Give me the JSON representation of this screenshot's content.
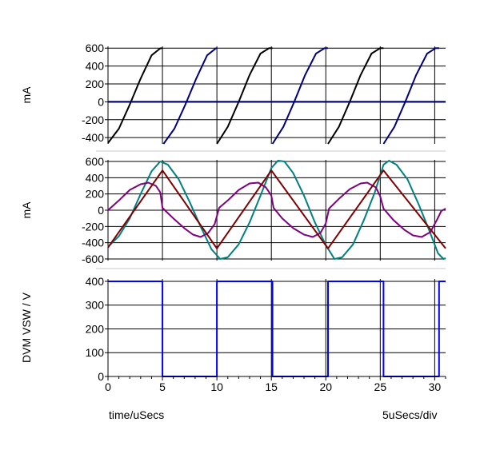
{
  "chart_data": [
    {
      "type": "line",
      "ylabel": "mA",
      "ylim": [
        -470,
        620
      ],
      "yticks": [
        600,
        400,
        200,
        0,
        -200,
        -400
      ],
      "ytick_labels": [
        "600",
        "400",
        "200",
        "0",
        "-200",
        "-400"
      ],
      "xlim": [
        0,
        31
      ],
      "grid": true,
      "series": [
        {
          "color": "#000000",
          "segments": [
            [
              [
                0,
                -460
              ],
              [
                1,
                -300
              ],
              [
                2,
                -30
              ],
              [
                3,
                260
              ],
              [
                4,
                520
              ],
              [
                4.8,
                598
              ],
              [
                5,
                600
              ]
            ],
            [
              [
                10,
                -470
              ],
              [
                11,
                -280
              ],
              [
                12,
                0
              ],
              [
                13,
                300
              ],
              [
                14,
                540
              ],
              [
                14.8,
                600
              ],
              [
                15.1,
                600
              ]
            ],
            [
              [
                20.2,
                -470
              ],
              [
                21.2,
                -280
              ],
              [
                22.2,
                0
              ],
              [
                23.2,
                300
              ],
              [
                24.2,
                540
              ],
              [
                25,
                600
              ],
              [
                25.3,
                600
              ]
            ],
            [
              [
                0,
                0
              ],
              [
                31,
                0
              ]
            ]
          ]
        },
        {
          "color": "#00007f",
          "segments": [
            [
              [
                5.1,
                -470
              ],
              [
                6.1,
                -300
              ],
              [
                7.1,
                -30
              ],
              [
                8.1,
                260
              ],
              [
                9.1,
                520
              ],
              [
                9.9,
                598
              ],
              [
                10,
                600
              ]
            ],
            [
              [
                15.1,
                -470
              ],
              [
                16.1,
                -280
              ],
              [
                17.1,
                0
              ],
              [
                18.1,
                300
              ],
              [
                19.1,
                540
              ],
              [
                19.9,
                600
              ],
              [
                20.2,
                600
              ]
            ],
            [
              [
                25.3,
                -470
              ],
              [
                26.3,
                -280
              ],
              [
                27.3,
                0
              ],
              [
                28.3,
                300
              ],
              [
                29.3,
                540
              ],
              [
                30.1,
                600
              ],
              [
                30.4,
                600
              ]
            ],
            [
              [
                0,
                0
              ],
              [
                31,
                0
              ]
            ]
          ]
        }
      ]
    },
    {
      "type": "line",
      "ylabel": "mA",
      "ylim": [
        -620,
        620
      ],
      "yticks": [
        600,
        400,
        200,
        0,
        -200,
        -400,
        -600
      ],
      "ytick_labels": [
        "600",
        "400",
        "200",
        "0",
        "-200",
        "-400",
        "-600"
      ],
      "xlim": [
        0,
        31
      ],
      "grid": true,
      "series": [
        {
          "color": "#008080",
          "points": [
            [
              0,
              -450
            ],
            [
              1,
              -320
            ],
            [
              2,
              -100
            ],
            [
              3,
              200
            ],
            [
              4,
              480
            ],
            [
              4.8,
              600
            ],
            [
              5.5,
              560
            ],
            [
              6.5,
              380
            ],
            [
              7.5,
              100
            ],
            [
              8.5,
              -200
            ],
            [
              9.5,
              -480
            ],
            [
              10.3,
              -600
            ],
            [
              11,
              -580
            ],
            [
              12,
              -420
            ],
            [
              13,
              -150
            ],
            [
              14,
              180
            ],
            [
              15,
              520
            ],
            [
              15.6,
              610
            ],
            [
              16.2,
              600
            ],
            [
              17,
              460
            ],
            [
              18,
              180
            ],
            [
              19,
              -150
            ],
            [
              20,
              -430
            ],
            [
              20.8,
              -600
            ],
            [
              21.5,
              -580
            ],
            [
              22.5,
              -420
            ],
            [
              23.5,
              -120
            ],
            [
              24.5,
              220
            ],
            [
              25.3,
              560
            ],
            [
              25.8,
              610
            ],
            [
              26.5,
              560
            ],
            [
              27.5,
              380
            ],
            [
              28.5,
              80
            ],
            [
              29.5,
              -250
            ],
            [
              30.3,
              -530
            ],
            [
              30.8,
              -600
            ],
            [
              31,
              -590
            ]
          ]
        },
        {
          "color": "#7f007f",
          "points": [
            [
              0,
              0
            ],
            [
              1,
              120
            ],
            [
              2,
              250
            ],
            [
              3,
              320
            ],
            [
              3.7,
              340
            ],
            [
              4.4,
              300
            ],
            [
              4.8,
              220
            ],
            [
              5,
              30
            ],
            [
              5.3,
              -10
            ],
            [
              6,
              -100
            ],
            [
              7,
              -220
            ],
            [
              7.8,
              -300
            ],
            [
              8.5,
              -330
            ],
            [
              9.2,
              -280
            ],
            [
              9.8,
              -170
            ],
            [
              10.2,
              30
            ],
            [
              11,
              120
            ],
            [
              12,
              250
            ],
            [
              13,
              330
            ],
            [
              13.8,
              340
            ],
            [
              14.5,
              280
            ],
            [
              15,
              180
            ],
            [
              15.2,
              30
            ],
            [
              16,
              -100
            ],
            [
              17,
              -220
            ],
            [
              18,
              -300
            ],
            [
              18.8,
              -330
            ],
            [
              19.5,
              -280
            ],
            [
              20,
              -160
            ],
            [
              20.3,
              20
            ],
            [
              21.2,
              140
            ],
            [
              22.2,
              260
            ],
            [
              23.2,
              330
            ],
            [
              23.8,
              340
            ],
            [
              24.6,
              280
            ],
            [
              25,
              170
            ],
            [
              25.3,
              20
            ],
            [
              26.2,
              -120
            ],
            [
              27.2,
              -240
            ],
            [
              28,
              -310
            ],
            [
              28.8,
              -330
            ],
            [
              29.6,
              -270
            ],
            [
              30.2,
              -120
            ],
            [
              30.6,
              -10
            ],
            [
              31,
              20
            ]
          ]
        },
        {
          "color": "#7f0000",
          "points": [
            [
              0,
              -460
            ],
            [
              5,
              490
            ],
            [
              10,
              -470
            ],
            [
              15,
              490
            ],
            [
              20.2,
              -470
            ],
            [
              25.3,
              490
            ],
            [
              31,
              -470
            ]
          ]
        }
      ]
    },
    {
      "type": "line",
      "ylabel": "DVM VSW / V",
      "ylim": [
        0,
        410
      ],
      "yticks": [
        400,
        300,
        200,
        100,
        0
      ],
      "ytick_labels": [
        "400",
        "300",
        "200",
        "100",
        "0"
      ],
      "xlim": [
        0,
        31
      ],
      "xticks": [
        0,
        5,
        10,
        15,
        20,
        25,
        30
      ],
      "xtick_labels": [
        "0",
        "5",
        "10",
        "15",
        "20",
        "25",
        "30"
      ],
      "grid": true,
      "series": [
        {
          "color": "#0000ff",
          "points": [
            [
              0,
              400
            ],
            [
              5,
              400
            ],
            [
              5,
              0
            ],
            [
              10,
              0
            ],
            [
              10,
              400
            ],
            [
              15.1,
              400
            ],
            [
              15.1,
              0
            ],
            [
              20.2,
              0
            ],
            [
              20.2,
              400
            ],
            [
              25.3,
              400
            ],
            [
              25.3,
              0
            ],
            [
              30.4,
              0
            ],
            [
              30.4,
              400
            ],
            [
              31,
              400
            ]
          ]
        }
      ]
    }
  ],
  "footer": {
    "xlabel": "time/uSecs",
    "scale": "5uSecs/div"
  }
}
